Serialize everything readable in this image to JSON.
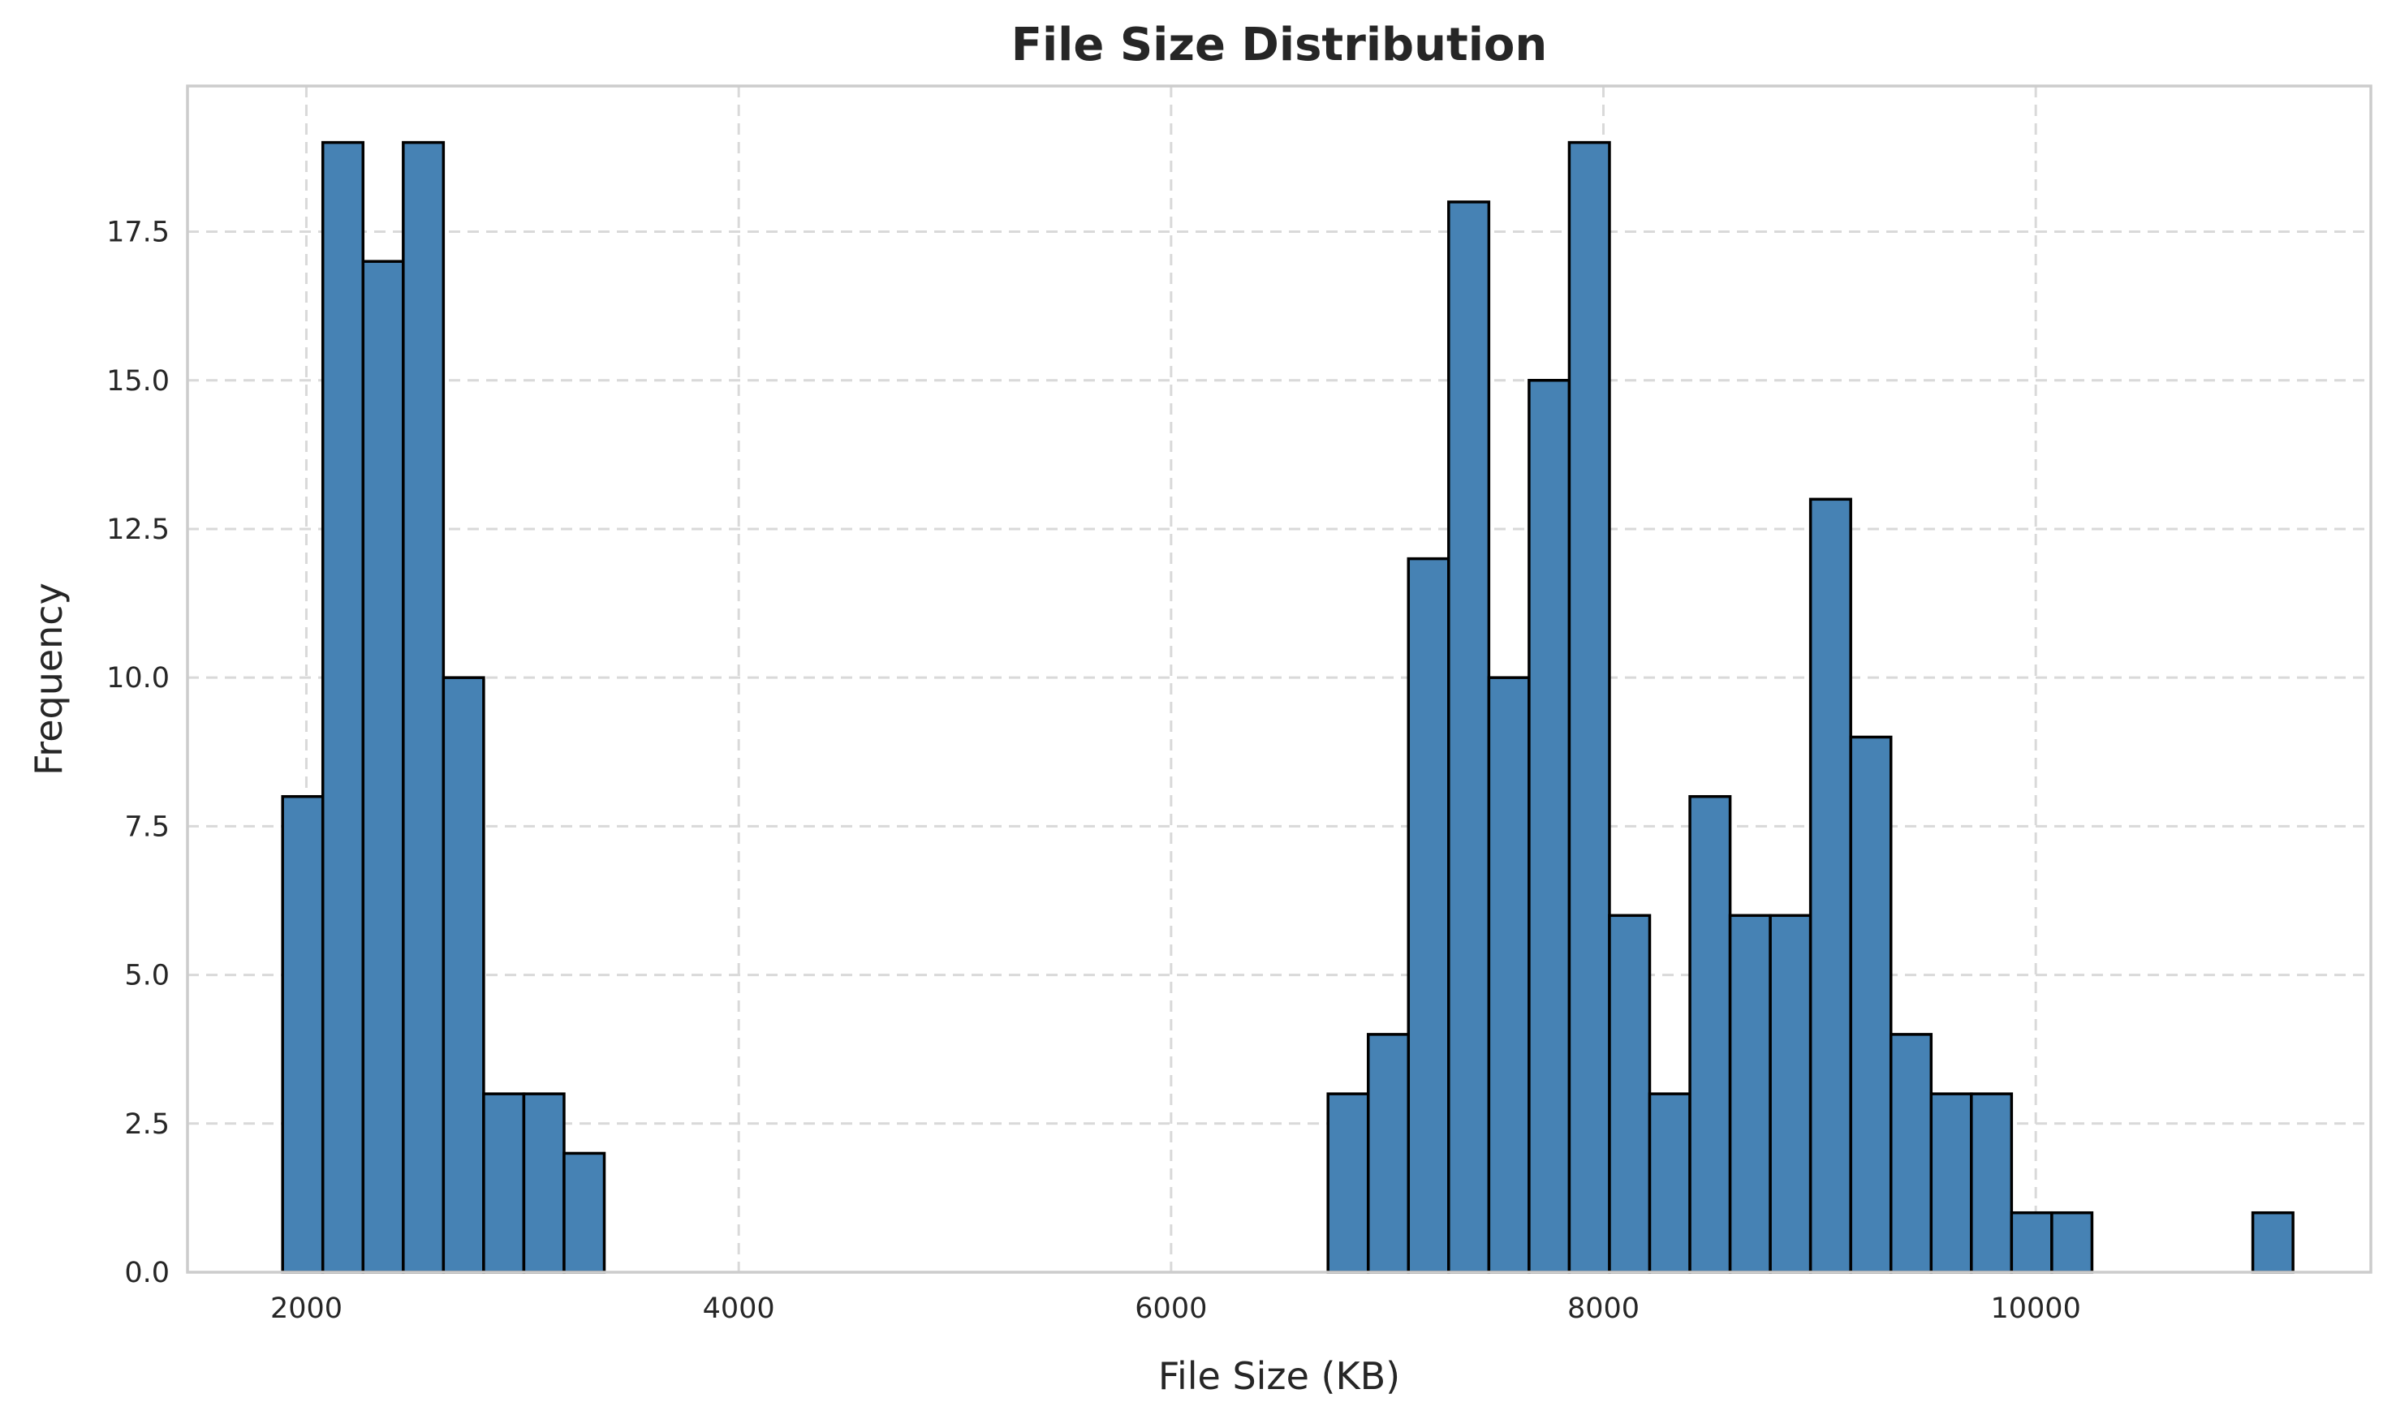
{
  "chart_data": {
    "type": "bar",
    "subtype": "histogram",
    "title": "File Size Distribution",
    "xlabel": "File Size (KB)",
    "ylabel": "Frequency",
    "xlim": [
      1450,
      11550
    ],
    "ylim": [
      0,
      19.95
    ],
    "xticks": [
      2000,
      4000,
      6000,
      8000,
      10000
    ],
    "xtick_labels": [
      "2000",
      "4000",
      "6000",
      "8000",
      "10000"
    ],
    "yticks": [
      0,
      2.5,
      5,
      7.5,
      10,
      12.5,
      15,
      17.5
    ],
    "ytick_labels": [
      "0.0",
      "2.5",
      "5.0",
      "7.5",
      "10.0",
      "12.5",
      "15.0",
      "17.5"
    ],
    "grid": true,
    "bar_color": "#4682b4",
    "edge_color": "#000000",
    "bins": [
      {
        "x0": 1890,
        "x1": 2076,
        "count": 8
      },
      {
        "x0": 2076,
        "x1": 2262,
        "count": 19
      },
      {
        "x0": 2262,
        "x1": 2448,
        "count": 17
      },
      {
        "x0": 2448,
        "x1": 2634,
        "count": 19
      },
      {
        "x0": 2634,
        "x1": 2820,
        "count": 10
      },
      {
        "x0": 2820,
        "x1": 3006,
        "count": 3
      },
      {
        "x0": 3006,
        "x1": 3192,
        "count": 3
      },
      {
        "x0": 3192,
        "x1": 3378,
        "count": 2
      },
      {
        "x0": 6726,
        "x1": 6912,
        "count": 3
      },
      {
        "x0": 6912,
        "x1": 7098,
        "count": 4
      },
      {
        "x0": 7098,
        "x1": 7284,
        "count": 12
      },
      {
        "x0": 7284,
        "x1": 7470,
        "count": 18
      },
      {
        "x0": 7470,
        "x1": 7656,
        "count": 10
      },
      {
        "x0": 7656,
        "x1": 7842,
        "count": 15
      },
      {
        "x0": 7842,
        "x1": 8028,
        "count": 19
      },
      {
        "x0": 8028,
        "x1": 8214,
        "count": 6
      },
      {
        "x0": 8214,
        "x1": 8400,
        "count": 3
      },
      {
        "x0": 8400,
        "x1": 8586,
        "count": 8
      },
      {
        "x0": 8586,
        "x1": 8772,
        "count": 6
      },
      {
        "x0": 8772,
        "x1": 8958,
        "count": 6
      },
      {
        "x0": 8958,
        "x1": 9144,
        "count": 13
      },
      {
        "x0": 9144,
        "x1": 9330,
        "count": 9
      },
      {
        "x0": 9330,
        "x1": 9516,
        "count": 4
      },
      {
        "x0": 9516,
        "x1": 9702,
        "count": 3
      },
      {
        "x0": 9702,
        "x1": 9888,
        "count": 3
      },
      {
        "x0": 9888,
        "x1": 10074,
        "count": 1
      },
      {
        "x0": 10074,
        "x1": 10260,
        "count": 1
      },
      {
        "x0": 11004,
        "x1": 11190,
        "count": 1
      }
    ]
  }
}
